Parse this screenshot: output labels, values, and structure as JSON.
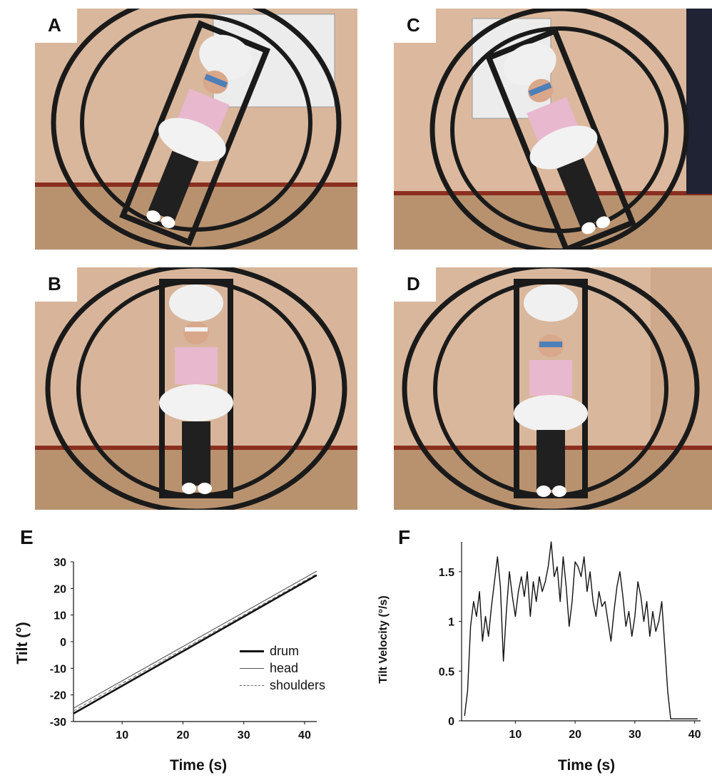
{
  "panels": {
    "A": {
      "label": "A"
    },
    "B": {
      "label": "B"
    },
    "C": {
      "label": "C"
    },
    "D": {
      "label": "D"
    },
    "E": {
      "label": "E"
    },
    "F": {
      "label": "F"
    }
  },
  "colors": {
    "wall": "#d9b79c",
    "floor": "#b8926f",
    "skirting": "#8a2f1f",
    "frame": "#1a1a1a",
    "shirt": "#e8b8cf",
    "pillow": "#f2f2f2",
    "coat": "#eeeeee",
    "blindfold": "#4d7fb8"
  },
  "chart_data": [
    {
      "type": "line",
      "panel": "E",
      "xlabel": "Time (s)",
      "ylabel": "Tilt (°)",
      "xticks": [
        10,
        20,
        30,
        40
      ],
      "yticks": [
        -30,
        -20,
        -10,
        0,
        10,
        20,
        30
      ],
      "xlim": [
        2,
        42
      ],
      "ylim": [
        -30,
        30
      ],
      "legend_position": "center-right",
      "series": [
        {
          "name": "drum",
          "style": "solid-thick",
          "x": [
            2,
            42
          ],
          "y": [
            -27,
            25
          ]
        },
        {
          "name": "head",
          "style": "solid-thin",
          "x": [
            2,
            42
          ],
          "y": [
            -25,
            26.5
          ]
        },
        {
          "name": "shoulders",
          "style": "dashed",
          "x": [
            2,
            42
          ],
          "y": [
            -26,
            25.5
          ]
        }
      ]
    },
    {
      "type": "line",
      "panel": "F",
      "xlabel": "Time (s)",
      "ylabel": "Tilt Velocity (°/s)",
      "xticks": [
        10,
        20,
        30,
        40
      ],
      "yticks": [
        0,
        0.5,
        1,
        1.5
      ],
      "xlim": [
        1,
        41
      ],
      "ylim": [
        0,
        1.8
      ],
      "series": [
        {
          "name": "",
          "x": [
            1.5,
            2,
            2.5,
            3,
            3.5,
            4,
            4.5,
            5,
            5.5,
            6,
            6.5,
            7,
            7.5,
            8,
            8.5,
            9,
            9.5,
            10,
            10.5,
            11,
            11.5,
            12,
            12.5,
            13,
            13.5,
            14,
            14.5,
            15,
            15.5,
            16,
            16.5,
            17,
            17.5,
            18,
            18.5,
            19,
            19.5,
            20,
            20.5,
            21,
            21.5,
            22,
            22.5,
            23,
            23.5,
            24,
            24.5,
            25,
            25.5,
            26,
            26.5,
            27,
            27.5,
            28,
            28.5,
            29,
            29.5,
            30,
            30.5,
            31,
            31.5,
            32,
            32.5,
            33,
            33.5,
            34,
            34.5,
            35,
            35.5,
            36,
            36.5,
            37,
            37.5,
            38,
            38.5,
            39,
            39.5,
            40,
            40.5
          ],
          "y": [
            0.05,
            0.3,
            0.95,
            1.2,
            1.05,
            1.3,
            0.8,
            1.05,
            0.85,
            1.15,
            1.4,
            1.65,
            1.35,
            0.6,
            1.1,
            1.5,
            1.25,
            1.05,
            1.3,
            1.45,
            1.25,
            1.5,
            1.05,
            1.4,
            1.2,
            1.45,
            1.3,
            1.4,
            1.55,
            1.8,
            1.45,
            1.55,
            1.2,
            1.65,
            1.35,
            0.95,
            1.2,
            1.6,
            1.55,
            1.45,
            1.65,
            1.3,
            1.5,
            1.2,
            1.05,
            1.3,
            1.15,
            1.2,
            1.0,
            0.8,
            1.1,
            1.35,
            1.5,
            1.25,
            0.95,
            1.1,
            0.85,
            1.05,
            1.4,
            1.25,
            1.0,
            1.2,
            0.85,
            1.1,
            0.9,
            1.0,
            1.2,
            0.75,
            0.3,
            0.02,
            0.02,
            0.02,
            0.02,
            0.02,
            0.02,
            0.02,
            0.02,
            0.02,
            0.02
          ]
        }
      ]
    }
  ]
}
